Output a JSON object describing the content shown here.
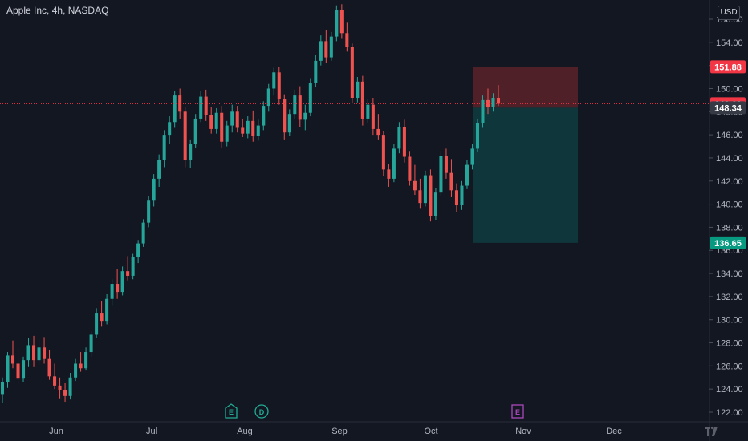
{
  "header": {
    "symbol": "Apple Inc",
    "interval": "4h",
    "exchange": "NASDAQ",
    "currency": "USD"
  },
  "colors": {
    "background": "#131722",
    "up": "#26a69a",
    "down": "#ef5350",
    "stop_zone": "#5a2228",
    "target_zone": "#0e3a3e",
    "last_price_tag": "#f23645",
    "entry_tag": "#363a45",
    "target_tag": "#089981",
    "earnings_icon": "#2196f3",
    "dividend_icon": "#22ab94",
    "future_earnings_icon": "#ab47bc"
  },
  "chart_data": {
    "type": "candlestick",
    "y_axis": {
      "min": 121.2,
      "max": 157.6,
      "ticks": [
        122,
        124,
        126,
        128,
        130,
        132,
        134,
        136,
        138,
        140,
        142,
        144,
        146,
        148,
        150,
        152,
        154,
        156
      ],
      "tick_labels": [
        "122.00",
        "124.00",
        "126.00",
        "128.00",
        "130.00",
        "132.00",
        "134.00",
        "136.00",
        "138.00",
        "140.00",
        "142.00",
        "144.00",
        "146.00",
        "148.00",
        "150.00",
        "152.00",
        "154.00",
        "156.00"
      ]
    },
    "x_axis": {
      "labels": [
        "Jun",
        "Jul",
        "Aug",
        "Sep",
        "Oct",
        "Nov",
        "Dec"
      ]
    },
    "candles": [
      [
        123.5,
        125.0,
        122.8,
        124.6
      ],
      [
        124.6,
        127.2,
        124.1,
        126.9
      ],
      [
        126.9,
        128.2,
        125.8,
        126.2
      ],
      [
        126.2,
        127.6,
        124.4,
        124.9
      ],
      [
        124.9,
        126.8,
        124.6,
        126.5
      ],
      [
        126.5,
        128.4,
        125.9,
        127.8
      ],
      [
        127.8,
        128.6,
        125.9,
        126.5
      ],
      [
        126.5,
        128.3,
        126.1,
        127.6
      ],
      [
        127.6,
        128.5,
        126.2,
        126.6
      ],
      [
        126.6,
        127.4,
        124.8,
        125.1
      ],
      [
        125.1,
        126.2,
        124.0,
        124.3
      ],
      [
        124.3,
        125.0,
        123.2,
        123.9
      ],
      [
        123.9,
        124.5,
        122.9,
        123.4
      ],
      [
        123.4,
        125.4,
        123.1,
        125.0
      ],
      [
        125.0,
        126.6,
        124.7,
        126.2
      ],
      [
        126.2,
        127.2,
        125.5,
        125.8
      ],
      [
        125.8,
        127.6,
        125.6,
        127.2
      ],
      [
        127.2,
        129.0,
        126.8,
        128.7
      ],
      [
        128.7,
        131.0,
        128.4,
        130.6
      ],
      [
        130.6,
        131.6,
        129.4,
        129.9
      ],
      [
        129.9,
        132.2,
        129.6,
        131.8
      ],
      [
        131.8,
        133.5,
        131.2,
        133.1
      ],
      [
        133.1,
        134.4,
        131.8,
        132.4
      ],
      [
        132.4,
        134.6,
        132.1,
        134.2
      ],
      [
        134.2,
        135.5,
        133.4,
        133.8
      ],
      [
        133.8,
        135.7,
        133.5,
        135.4
      ],
      [
        135.4,
        136.9,
        134.9,
        136.6
      ],
      [
        136.6,
        138.7,
        136.3,
        138.4
      ],
      [
        138.4,
        140.7,
        138.0,
        140.3
      ],
      [
        140.3,
        142.6,
        139.8,
        142.2
      ],
      [
        142.2,
        144.3,
        141.5,
        143.8
      ],
      [
        143.8,
        146.4,
        143.2,
        146.0
      ],
      [
        146.0,
        147.6,
        145.2,
        147.1
      ],
      [
        147.1,
        149.8,
        146.6,
        149.4
      ],
      [
        149.4,
        150.0,
        147.4,
        148.0
      ],
      [
        148.0,
        148.4,
        143.2,
        143.8
      ],
      [
        143.8,
        145.6,
        143.1,
        145.2
      ],
      [
        145.2,
        147.8,
        144.9,
        147.4
      ],
      [
        147.4,
        149.8,
        147.1,
        149.3
      ],
      [
        149.3,
        149.9,
        147.2,
        147.7
      ],
      [
        147.7,
        148.4,
        146.1,
        146.5
      ],
      [
        146.5,
        148.3,
        146.1,
        147.9
      ],
      [
        147.9,
        148.5,
        144.9,
        145.4
      ],
      [
        145.4,
        147.2,
        145.0,
        146.8
      ],
      [
        146.8,
        148.6,
        146.2,
        148.0
      ],
      [
        148.0,
        148.5,
        146.2,
        146.6
      ],
      [
        146.6,
        147.4,
        145.8,
        146.1
      ],
      [
        146.1,
        147.6,
        145.7,
        147.2
      ],
      [
        147.2,
        148.1,
        145.4,
        145.9
      ],
      [
        145.9,
        147.3,
        145.5,
        146.8
      ],
      [
        146.8,
        148.9,
        146.4,
        148.5
      ],
      [
        148.5,
        150.4,
        148.0,
        150.0
      ],
      [
        150.0,
        151.8,
        149.4,
        151.4
      ],
      [
        151.4,
        151.9,
        148.6,
        149.1
      ],
      [
        149.1,
        149.5,
        145.6,
        146.2
      ],
      [
        146.2,
        148.2,
        145.9,
        147.8
      ],
      [
        147.8,
        149.9,
        147.4,
        149.4
      ],
      [
        149.4,
        150.2,
        146.7,
        147.3
      ],
      [
        147.3,
        148.6,
        146.4,
        147.9
      ],
      [
        147.9,
        150.9,
        147.6,
        150.5
      ],
      [
        150.5,
        152.9,
        150.1,
        152.4
      ],
      [
        152.4,
        154.6,
        152.0,
        154.1
      ],
      [
        154.1,
        155.1,
        152.2,
        152.7
      ],
      [
        152.7,
        154.9,
        152.4,
        154.5
      ],
      [
        154.5,
        157.2,
        154.1,
        156.8
      ],
      [
        156.8,
        157.3,
        154.3,
        154.8
      ],
      [
        154.8,
        155.7,
        153.2,
        153.6
      ],
      [
        153.6,
        153.9,
        148.7,
        149.2
      ],
      [
        149.2,
        151.0,
        148.8,
        150.6
      ],
      [
        150.6,
        151.1,
        146.8,
        147.4
      ],
      [
        147.4,
        149.1,
        147.0,
        148.6
      ],
      [
        148.6,
        149.2,
        146.0,
        146.5
      ],
      [
        146.5,
        147.8,
        145.6,
        146.0
      ],
      [
        146.0,
        146.3,
        142.4,
        143.0
      ],
      [
        143.0,
        143.5,
        141.5,
        142.2
      ],
      [
        142.2,
        145.2,
        141.9,
        144.8
      ],
      [
        144.8,
        147.1,
        144.4,
        146.7
      ],
      [
        146.7,
        147.3,
        143.6,
        144.1
      ],
      [
        144.1,
        144.6,
        141.6,
        142.0
      ],
      [
        142.0,
        143.4,
        140.8,
        141.2
      ],
      [
        141.2,
        142.2,
        139.6,
        140.1
      ],
      [
        140.1,
        142.9,
        139.8,
        142.5
      ],
      [
        142.5,
        143.0,
        138.5,
        139.0
      ],
      [
        139.0,
        141.4,
        138.6,
        141.0
      ],
      [
        141.0,
        144.6,
        140.7,
        144.2
      ],
      [
        144.2,
        144.8,
        142.2,
        142.7
      ],
      [
        142.7,
        143.9,
        140.6,
        141.2
      ],
      [
        141.2,
        141.8,
        139.3,
        139.9
      ],
      [
        139.9,
        142.0,
        139.5,
        141.6
      ],
      [
        141.6,
        143.8,
        141.3,
        143.4
      ],
      [
        143.4,
        145.2,
        143.0,
        144.8
      ],
      [
        144.8,
        147.4,
        144.5,
        147.0
      ],
      [
        147.0,
        149.4,
        146.6,
        149.0
      ],
      [
        149.0,
        150.0,
        147.8,
        148.4
      ],
      [
        148.4,
        149.6,
        148.0,
        149.2
      ],
      [
        149.2,
        150.3,
        148.5,
        148.69
      ]
    ],
    "position": {
      "entry": 148.34,
      "stop": 151.88,
      "target": 136.65,
      "last_price": 148.69,
      "entry_label": "148.34",
      "stop_label": "151.88",
      "target_label": "136.65",
      "last_price_label": "148.69"
    },
    "events": [
      {
        "type": "earnings",
        "label": "E"
      },
      {
        "type": "dividend",
        "label": "D"
      },
      {
        "type": "earnings-upcoming",
        "label": "E"
      }
    ]
  }
}
